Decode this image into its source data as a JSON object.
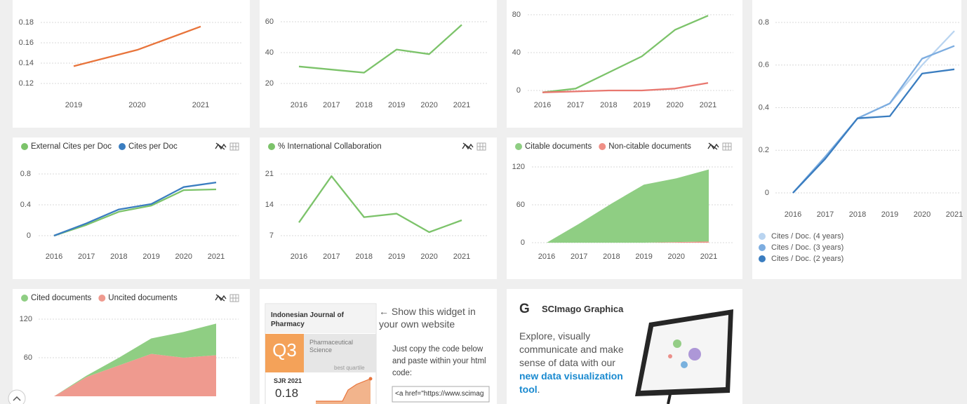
{
  "chart_data": [
    {
      "type": "line",
      "categories": [
        "2019",
        "2020",
        "2021"
      ],
      "values": [
        0.137,
        0.153,
        0.176
      ],
      "color": "#e8743b",
      "ylim": [
        0.1,
        0.19
      ],
      "yticks": [
        0.12,
        0.14,
        0.16,
        0.18
      ],
      "grid": true
    },
    {
      "type": "line",
      "categories": [
        "2016",
        "2017",
        "2018",
        "2019",
        "2020",
        "2021"
      ],
      "values": [
        31,
        29,
        27,
        42,
        39,
        58
      ],
      "color": "#7cc36a",
      "ylim": [
        10,
        65
      ],
      "yticks": [
        20,
        40,
        60
      ],
      "grid": true
    },
    {
      "type": "line",
      "categories": [
        "2016",
        "2017",
        "2018",
        "2019",
        "2020",
        "2021"
      ],
      "series": [
        {
          "color": "#7cc36a",
          "values": [
            -2,
            2,
            19,
            36,
            64,
            79
          ]
        },
        {
          "color": "#e8776f",
          "values": [
            -2,
            -1,
            0,
            0,
            2,
            8
          ]
        }
      ],
      "ylim": [
        -10,
        90
      ],
      "yticks": [
        0,
        40,
        80
      ],
      "grid": true
    },
    {
      "type": "line",
      "categories": [
        "2016",
        "2017",
        "2018",
        "2019",
        "2020",
        "2021"
      ],
      "series": [
        {
          "name": "Cites / Doc. (4 years)",
          "color": "#b9d4f0",
          "values": [
            0,
            0.17,
            0.35,
            0.42,
            0.6,
            0.76
          ]
        },
        {
          "name": "Cites / Doc. (3 years)",
          "color": "#7dade0",
          "values": [
            0,
            0.17,
            0.35,
            0.42,
            0.63,
            0.69
          ]
        },
        {
          "name": "Cites / Doc. (2 years)",
          "color": "#3a7dc0",
          "values": [
            0,
            0.16,
            0.35,
            0.36,
            0.56,
            0.58
          ]
        }
      ],
      "ylim": [
        -0.05,
        0.85
      ],
      "yticks": [
        0,
        0.2,
        0.4,
        0.6,
        0.8
      ],
      "grid": true,
      "legend": "bottom"
    },
    {
      "type": "line",
      "categories": [
        "2016",
        "2017",
        "2018",
        "2019",
        "2020",
        "2021"
      ],
      "series": [
        {
          "name": "External Cites per Doc",
          "color": "#7cc36a",
          "values": [
            0,
            0.14,
            0.31,
            0.39,
            0.59,
            0.6
          ]
        },
        {
          "name": "Cites per Doc",
          "color": "#3a7dc0",
          "values": [
            0,
            0.16,
            0.34,
            0.41,
            0.63,
            0.69
          ]
        }
      ],
      "ylim": [
        -0.1,
        0.9
      ],
      "yticks": [
        0,
        0.4,
        0.8
      ],
      "grid": true,
      "legend": "top"
    },
    {
      "type": "line",
      "categories": [
        "2016",
        "2017",
        "2018",
        "2019",
        "2020",
        "2021"
      ],
      "series": [
        {
          "name": "% International Collaboration",
          "color": "#7cc36a",
          "values": [
            10,
            20.5,
            11.2,
            12,
            7.8,
            10.5
          ]
        }
      ],
      "ylim": [
        5,
        23
      ],
      "yticks": [
        7,
        14,
        21
      ],
      "grid": true,
      "legend": "top"
    },
    {
      "type": "area",
      "categories": [
        "2016",
        "2017",
        "2018",
        "2019",
        "2020",
        "2021"
      ],
      "series": [
        {
          "name": "Citable documents",
          "color": "#8fce83",
          "values": [
            0,
            30,
            62,
            92,
            101,
            114
          ]
        },
        {
          "name": "Non-citable documents",
          "color": "#ef8f86",
          "values": [
            0,
            0,
            0,
            0,
            1,
            2
          ]
        }
      ],
      "ylim": [
        -10,
        130
      ],
      "yticks": [
        0,
        60,
        120
      ],
      "grid": true,
      "legend": "top"
    },
    {
      "type": "area",
      "series": [
        {
          "name": "Cited documents",
          "color": "#8fce83",
          "values": [
            0,
            2,
            12,
            24,
            40,
            49
          ]
        },
        {
          "name": "Uncited documents",
          "color": "#ef9a8f",
          "values": [
            0,
            30,
            48,
            66,
            60,
            64
          ]
        }
      ],
      "ylim": [
        0,
        130
      ],
      "yticks": [
        60,
        120
      ],
      "grid": true,
      "legend": "top"
    }
  ],
  "widget": {
    "journal": "Indonesian Journal of Pharmacy",
    "quartile": "Q3",
    "category": "Pharmaceutical Science",
    "quartile_note": "best quartile",
    "sjr_label": "SJR 2021",
    "sjr_value": 0.18,
    "prompt": "← Show this widget in your own website",
    "instructions": "Just copy the code below and paste within your html code:",
    "code": "<a href=\"https://www.scimag"
  },
  "graphica": {
    "logo": "G",
    "title": "SCImago Graphica",
    "text": "Explore, visually communicate and make sense of data with our",
    "link": "new data visualization tool",
    "end": "."
  }
}
